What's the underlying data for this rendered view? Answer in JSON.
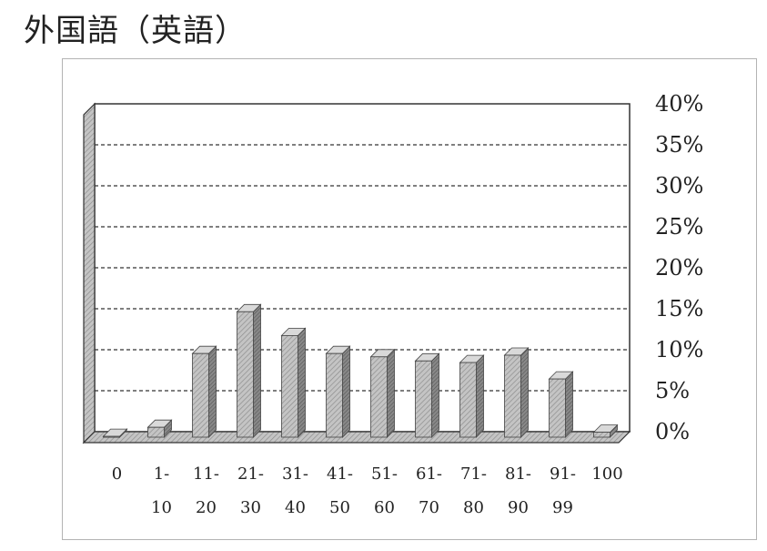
{
  "title": "外国語（英語）",
  "chart_data": {
    "type": "bar",
    "title": "外国語（英語）",
    "xlabel": "",
    "ylabel": "",
    "ylim": [
      0,
      40
    ],
    "yticks": [
      "0%",
      "5%",
      "10%",
      "15%",
      "20%",
      "25%",
      "30%",
      "35%",
      "40%"
    ],
    "categories": [
      {
        "line1": "0",
        "line2": ""
      },
      {
        "line1": "1-",
        "line2": "10"
      },
      {
        "line1": "11-",
        "line2": "20"
      },
      {
        "line1": "21-",
        "line2": "30"
      },
      {
        "line1": "31-",
        "line2": "40"
      },
      {
        "line1": "41-",
        "line2": "50"
      },
      {
        "line1": "51-",
        "line2": "60"
      },
      {
        "line1": "61-",
        "line2": "70"
      },
      {
        "line1": "71-",
        "line2": "80"
      },
      {
        "line1": "81-",
        "line2": "90"
      },
      {
        "line1": "91-",
        "line2": "99"
      },
      {
        "line1": "100",
        "line2": ""
      }
    ],
    "values": [
      0.1,
      1.2,
      10.2,
      15.3,
      12.4,
      10.2,
      9.8,
      9.3,
      9.1,
      10.0,
      7.1,
      0.6
    ],
    "grid": true,
    "legend": "none",
    "colors": {
      "bar": "#bdbdbd",
      "bar_dark": "#6f6f6f",
      "axis": "#333333"
    }
  }
}
